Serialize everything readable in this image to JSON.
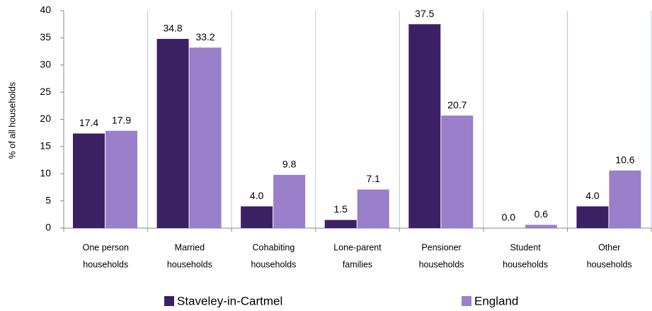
{
  "chart_data": {
    "type": "bar",
    "y_label": "% of all households",
    "categories": [
      [
        "One person",
        "households"
      ],
      [
        "Married",
        "households"
      ],
      [
        "Cohabiting",
        "households"
      ],
      [
        "Lone-parent",
        "families"
      ],
      [
        "Pensioner",
        "households"
      ],
      [
        "Student",
        "households"
      ],
      [
        "Other",
        "households"
      ]
    ],
    "series": [
      {
        "name": "Staveley-in-Cartmel",
        "color": "#3c2064",
        "values": [
          17.4,
          34.8,
          4,
          1.5,
          37.5,
          0,
          4
        ],
        "value_labels": [
          "17.4",
          "34.8",
          "4.0",
          "1.5",
          "37.5",
          "0.0",
          "4.0"
        ]
      },
      {
        "name": "England",
        "color": "#9a7fcb",
        "values": [
          17.9,
          33.2,
          9.8,
          7.1,
          20.7,
          0.6,
          10.6
        ],
        "value_labels": [
          "17.9",
          "33.2",
          "9.8",
          "7.1",
          "20.7",
          "0.6",
          "10.6"
        ]
      }
    ],
    "ylim": [
      0,
      40
    ],
    "yticks": [
      0,
      5,
      10,
      15,
      20,
      25,
      30,
      35,
      40
    ]
  }
}
